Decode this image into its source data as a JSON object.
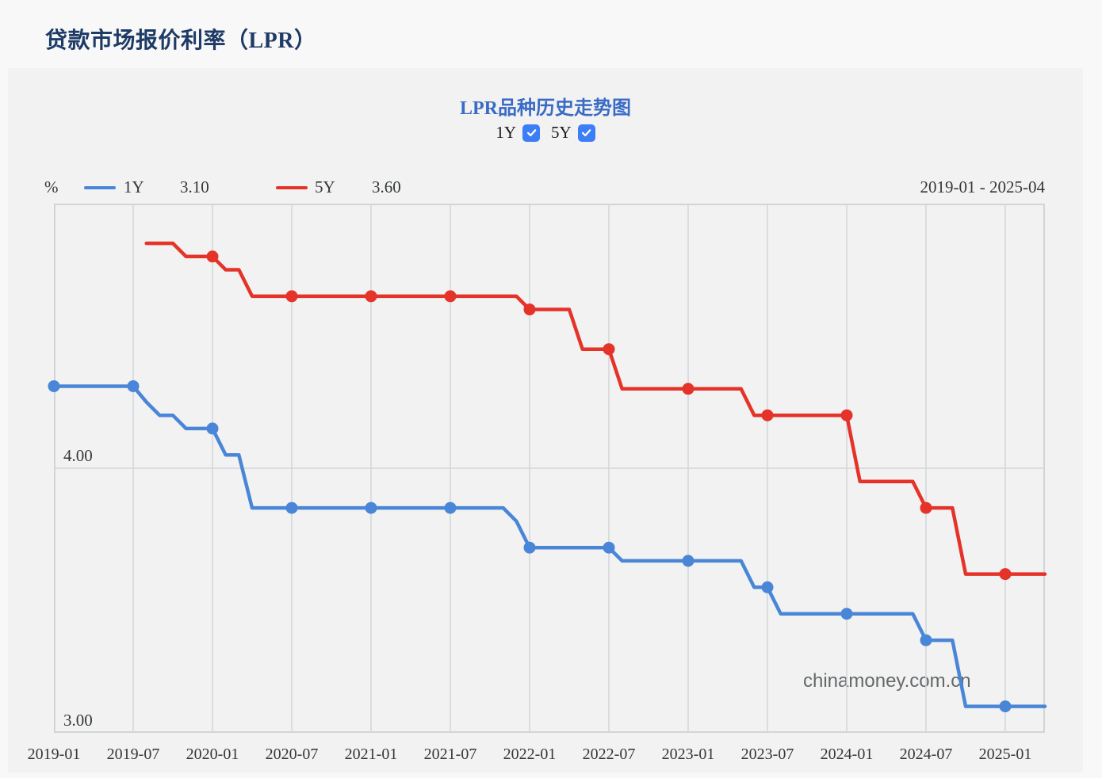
{
  "page": {
    "title": "贷款市场报价利率（LPR）"
  },
  "panel": {
    "title": "LPR品种历史走势图",
    "controls": [
      {
        "label": "1Y",
        "checked": true
      },
      {
        "label": "5Y",
        "checked": true
      }
    ],
    "unit_label": "%",
    "range_label": "2019-01 - 2025-04",
    "legend": [
      {
        "label": "1Y",
        "value": "3.10",
        "color": "#4a86d8"
      },
      {
        "label": "5Y",
        "value": "3.60",
        "color": "#e53329"
      }
    ],
    "watermark": "chinamoney.com.cn",
    "accent_colors": {
      "title_navy": "#1e3a66",
      "chart_title_blue": "#3a6bc5",
      "checkbox_blue": "#3c7ef5"
    }
  },
  "chart_data": {
    "type": "line",
    "title": "LPR品种历史走势图",
    "x_start": "2019-01",
    "x_end": "2025-04",
    "months_total": 75,
    "x_tick_every_months": 6,
    "x_tick_labels": [
      "2019-01",
      "2019-07",
      "2020-01",
      "2020-07",
      "2021-01",
      "2021-07",
      "2022-01",
      "2022-07",
      "2023-01",
      "2023-07",
      "2024-01",
      "2024-07",
      "2025-01"
    ],
    "ylim": [
      3.0,
      5.0
    ],
    "y_gridlines": [
      4.0
    ],
    "y_tick_labels": [
      {
        "value": 4.0,
        "label": "4.00"
      },
      {
        "value": 3.0,
        "label": "3.00"
      }
    ],
    "marker_every_months": 6,
    "grid_color": "#d3d6da",
    "frame_color": "#d2d5d8",
    "legend_position": "top",
    "series": [
      {
        "name": "1Y",
        "color": "#4a86d8",
        "start_month": "2019-01",
        "start_offset_months": 0,
        "current_value": 3.1,
        "values": [
          4.31,
          4.31,
          4.31,
          4.31,
          4.31,
          4.31,
          4.31,
          4.25,
          4.2,
          4.2,
          4.15,
          4.15,
          4.15,
          4.05,
          4.05,
          3.85,
          3.85,
          3.85,
          3.85,
          3.85,
          3.85,
          3.85,
          3.85,
          3.85,
          3.85,
          3.85,
          3.85,
          3.85,
          3.85,
          3.85,
          3.85,
          3.85,
          3.85,
          3.85,
          3.85,
          3.8,
          3.7,
          3.7,
          3.7,
          3.7,
          3.7,
          3.7,
          3.7,
          3.65,
          3.65,
          3.65,
          3.65,
          3.65,
          3.65,
          3.65,
          3.65,
          3.65,
          3.65,
          3.55,
          3.55,
          3.45,
          3.45,
          3.45,
          3.45,
          3.45,
          3.45,
          3.45,
          3.45,
          3.45,
          3.45,
          3.45,
          3.35,
          3.35,
          3.35,
          3.1,
          3.1,
          3.1,
          3.1,
          3.1,
          3.1,
          3.1
        ]
      },
      {
        "name": "5Y",
        "color": "#e53329",
        "start_month": "2019-08",
        "start_offset_months": 7,
        "current_value": 3.6,
        "values": [
          4.85,
          4.85,
          4.85,
          4.8,
          4.8,
          4.8,
          4.75,
          4.75,
          4.65,
          4.65,
          4.65,
          4.65,
          4.65,
          4.65,
          4.65,
          4.65,
          4.65,
          4.65,
          4.65,
          4.65,
          4.65,
          4.65,
          4.65,
          4.65,
          4.65,
          4.65,
          4.65,
          4.65,
          4.65,
          4.6,
          4.6,
          4.6,
          4.6,
          4.45,
          4.45,
          4.45,
          4.3,
          4.3,
          4.3,
          4.3,
          4.3,
          4.3,
          4.3,
          4.3,
          4.3,
          4.3,
          4.2,
          4.2,
          4.2,
          4.2,
          4.2,
          4.2,
          4.2,
          4.2,
          3.95,
          3.95,
          3.95,
          3.95,
          3.95,
          3.85,
          3.85,
          3.85,
          3.6,
          3.6,
          3.6,
          3.6,
          3.6,
          3.6,
          3.6
        ]
      }
    ]
  }
}
